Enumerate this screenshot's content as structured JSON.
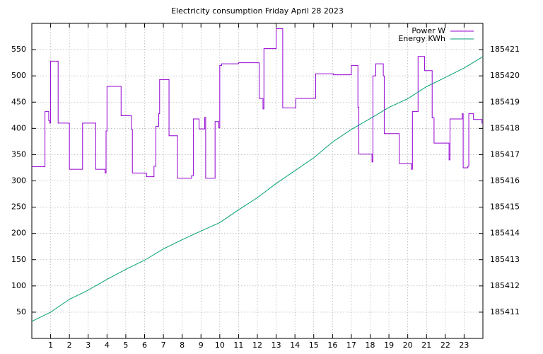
{
  "chart_data": {
    "type": "line",
    "title": "Electricity consumption Friday April 28 2023",
    "xlim": [
      0,
      24
    ],
    "xticks": [
      1,
      2,
      3,
      4,
      5,
      6,
      7,
      8,
      9,
      10,
      11,
      12,
      13,
      14,
      15,
      16,
      17,
      18,
      19,
      20,
      21,
      22,
      23
    ],
    "ylim": [
      0,
      600
    ],
    "yticks": [
      50,
      100,
      150,
      200,
      250,
      300,
      350,
      400,
      450,
      500,
      550
    ],
    "y2lim": [
      185410,
      185422
    ],
    "y2ticks": [
      185411,
      185412,
      185413,
      185414,
      185415,
      185416,
      185417,
      185418,
      185419,
      185420,
      185421
    ],
    "grid": true,
    "legend": "top-right",
    "series": [
      {
        "name": "Power W",
        "color": "#9400d3",
        "steps": true,
        "x": [
          0,
          0.7,
          0.9,
          0.95,
          1.0,
          1.4,
          2.0,
          2.7,
          3.4,
          3.9,
          3.95,
          4.0,
          4.75,
          5.3,
          5.35,
          6.1,
          6.5,
          6.6,
          6.75,
          6.8,
          7.3,
          7.75,
          8.5,
          8.6,
          8.9,
          9.2,
          9.25,
          9.75,
          9.95,
          10.0,
          10.1,
          11.0,
          12.1,
          12.3,
          12.35,
          13.0,
          13.35,
          14.05,
          15.1,
          16.05,
          17.0,
          17.35,
          17.4,
          18.1,
          18.15,
          18.3,
          18.7,
          18.75,
          19.55,
          20.2,
          20.25,
          20.55,
          20.9,
          21.3,
          21.4,
          22.2,
          22.25,
          22.9,
          22.95,
          23.2,
          23.25,
          23.5,
          23.95,
          24
        ],
        "values": [
          327,
          432,
          415,
          410,
          528,
          410,
          322,
          410,
          322,
          315,
          395,
          480,
          424,
          398,
          315,
          308,
          328,
          404,
          428,
          493,
          386,
          305,
          310,
          418,
          399,
          421,
          305,
          413,
          401,
          520,
          523,
          525,
          457,
          437,
          552,
          590,
          439,
          457,
          504,
          502,
          520,
          440,
          351,
          336,
          500,
          523,
          500,
          390,
          333,
          322,
          432,
          537,
          510,
          420,
          372,
          340,
          418,
          428,
          325,
          328,
          428,
          417,
          410,
          410
        ]
      },
      {
        "name": "Energy KWh",
        "color": "#009e73",
        "axis": "y2",
        "x": [
          0,
          1,
          2,
          3,
          4,
          5,
          6,
          7,
          8,
          9,
          10,
          11,
          12,
          13,
          14,
          15,
          16,
          17,
          18,
          19,
          20,
          21,
          22,
          23,
          24
        ],
        "values": [
          185410.65,
          185411.0,
          185411.49,
          185411.84,
          185412.25,
          185412.63,
          185412.98,
          185413.41,
          185413.76,
          185414.09,
          185414.41,
          185414.9,
          185415.36,
          185415.9,
          185416.39,
          185416.88,
          185417.48,
          185417.96,
          185418.37,
          185418.8,
          185419.13,
          185419.59,
          185419.94,
          185420.3,
          185420.73
        ]
      }
    ]
  }
}
